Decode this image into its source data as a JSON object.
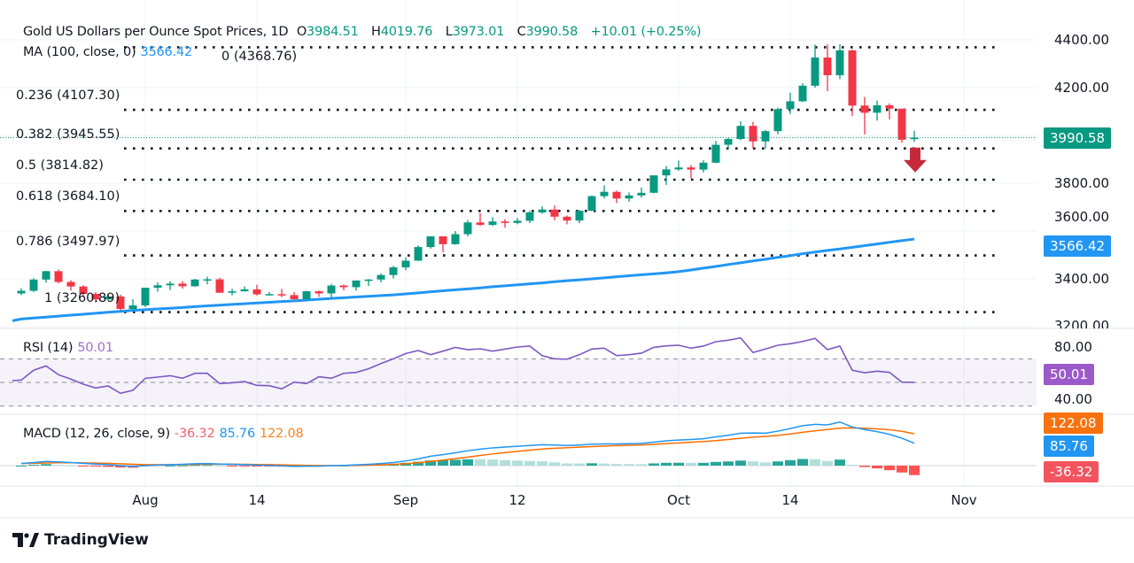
{
  "header": {
    "symbol_title": "Gold US Dollars per Ounce Spot Prices, 1D",
    "open_label": "O",
    "open": "3984.51",
    "high_label": "H",
    "high": "4019.76",
    "low_label": "L",
    "low": "3973.01",
    "close_label": "C",
    "close": "3990.58",
    "change": "+10.01 (+0.25%)"
  },
  "ma_legend": {
    "label": "MA (100, close, 0)",
    "value": "3566.42"
  },
  "rsi_legend": {
    "label": "RSI (14)",
    "value": "50.01"
  },
  "macd_legend": {
    "label": "MACD (12, 26, close, 9)",
    "hist": "-36.32",
    "macd": "85.76",
    "signal": "122.08"
  },
  "fib_levels": [
    {
      "label": "0 (4368.76)",
      "price": 4368.76
    },
    {
      "label": "0.236 (4107.30)",
      "price": 4107.3
    },
    {
      "label": "0.382 (3945.55)",
      "price": 3945.55
    },
    {
      "label": "0.5 (3814.82)",
      "price": 3814.82
    },
    {
      "label": "0.618 (3684.10)",
      "price": 3684.1
    },
    {
      "label": "0.786 (3497.97)",
      "price": 3497.97
    },
    {
      "label": "1 (3260.89)",
      "price": 3260.89
    }
  ],
  "price_axis": {
    "ticks": [
      "4400.00",
      "4200.00",
      "3800.00",
      "3600.00",
      "3400.00",
      "3200.00"
    ],
    "last_price_badge": "3990.58",
    "ma_badge": "3566.42"
  },
  "rsi_axis": {
    "ticks": [
      "80.00",
      "40.00"
    ],
    "badge": "50.01",
    "bands": [
      70,
      50,
      30
    ]
  },
  "macd_axis": {
    "signal_badge": "122.08",
    "macd_badge": "85.76",
    "hist_badge": "-36.32"
  },
  "time_axis": {
    "ticks": [
      {
        "label": "Aug",
        "date": "Aug 1"
      },
      {
        "label": "14",
        "date": "Aug 14"
      },
      {
        "label": "Sep",
        "date": "Sep 1"
      },
      {
        "label": "12",
        "date": "Sep 12"
      },
      {
        "label": "Oct",
        "date": "Oct 1"
      },
      {
        "label": "14",
        "date": "Oct 14"
      },
      {
        "label": "Nov",
        "date": "Nov 3"
      }
    ]
  },
  "colors": {
    "up": "#089981",
    "down": "#f23645",
    "ma": "#2196f3",
    "rsi": "#7e57c2",
    "macd": "#2196f3",
    "signal": "#ff6d00",
    "arrow": "#c62a3a",
    "hist_up_strong": "#26a69a",
    "hist_up_weak": "#b2dfdb",
    "hist_down_strong": "#ff5252",
    "hist_down_weak": "#ffcdd2"
  },
  "annotation": {
    "type": "down-arrow",
    "near_price": 3860
  },
  "brand": "TradingView",
  "chart_data": {
    "type": "candlestick",
    "timeframe": "1D",
    "ylim": [
      3200,
      4400
    ],
    "bars": [
      [
        "Jul 18",
        3339,
        3361,
        3332,
        3350
      ],
      [
        "Jul 21",
        3350,
        3402,
        3345,
        3397
      ],
      [
        "Jul 22",
        3397,
        3434,
        3384,
        3432
      ],
      [
        "Jul 23",
        3432,
        3439,
        3381,
        3387
      ],
      [
        "Jul 24",
        3387,
        3394,
        3351,
        3368
      ],
      [
        "Jul 25",
        3368,
        3373,
        3325,
        3337
      ],
      [
        "Jul 28",
        3337,
        3345,
        3301,
        3314
      ],
      [
        "Jul 29",
        3314,
        3334,
        3309,
        3326
      ],
      [
        "Jul 30",
        3326,
        3334,
        3268,
        3274
      ],
      [
        "Jul 31",
        3274,
        3315,
        3268,
        3289
      ],
      [
        "Aug 1",
        3289,
        3363,
        3281,
        3363
      ],
      [
        "Aug 4",
        3363,
        3385,
        3346,
        3373
      ],
      [
        "Aug 5",
        3373,
        3390,
        3353,
        3380
      ],
      [
        "Aug 6",
        3380,
        3391,
        3359,
        3369
      ],
      [
        "Aug 7",
        3369,
        3400,
        3367,
        3397
      ],
      [
        "Aug 8",
        3397,
        3409,
        3377,
        3398
      ],
      [
        "Aug 11",
        3398,
        3405,
        3341,
        3342
      ],
      [
        "Aug 12",
        3342,
        3358,
        3331,
        3348
      ],
      [
        "Aug 13",
        3348,
        3368,
        3346,
        3356
      ],
      [
        "Aug 14",
        3356,
        3375,
        3330,
        3335
      ],
      [
        "Aug 15",
        3335,
        3345,
        3330,
        3336
      ],
      [
        "Aug 18",
        3336,
        3358,
        3323,
        3332
      ],
      [
        "Aug 19",
        3332,
        3345,
        3311,
        3315
      ],
      [
        "Aug 20",
        3315,
        3350,
        3311,
        3348
      ],
      [
        "Aug 21",
        3348,
        3351,
        3325,
        3339
      ],
      [
        "Aug 22",
        3339,
        3379,
        3321,
        3372
      ],
      [
        "Aug 25",
        3372,
        3376,
        3352,
        3365
      ],
      [
        "Aug 26",
        3365,
        3394,
        3351,
        3393
      ],
      [
        "Aug 27",
        3393,
        3399,
        3370,
        3397
      ],
      [
        "Aug 28",
        3397,
        3423,
        3385,
        3416
      ],
      [
        "Aug 29",
        3416,
        3454,
        3402,
        3448
      ],
      [
        "Sep 1",
        3448,
        3490,
        3436,
        3476
      ],
      [
        "Sep 2",
        3476,
        3540,
        3475,
        3533
      ],
      [
        "Sep 3",
        3533,
        3578,
        3526,
        3578
      ],
      [
        "Sep 4",
        3578,
        3578,
        3511,
        3545
      ],
      [
        "Sep 5",
        3545,
        3600,
        3543,
        3587
      ],
      [
        "Sep 8",
        3587,
        3646,
        3578,
        3636
      ],
      [
        "Sep 9",
        3636,
        3674,
        3621,
        3626
      ],
      [
        "Sep 10",
        3626,
        3658,
        3621,
        3640
      ],
      [
        "Sep 11",
        3640,
        3650,
        3614,
        3634
      ],
      [
        "Sep 12",
        3634,
        3655,
        3628,
        3643
      ],
      [
        "Sep 15",
        3643,
        3685,
        3633,
        3678
      ],
      [
        "Sep 16",
        3678,
        3703,
        3672,
        3690
      ],
      [
        "Sep 17",
        3690,
        3707,
        3645,
        3660
      ],
      [
        "Sep 18",
        3660,
        3665,
        3628,
        3644
      ],
      [
        "Sep 19",
        3644,
        3688,
        3633,
        3685
      ],
      [
        "Sep 22",
        3685,
        3749,
        3683,
        3746
      ],
      [
        "Sep 23",
        3746,
        3791,
        3736,
        3764
      ],
      [
        "Sep 24",
        3764,
        3769,
        3717,
        3736
      ],
      [
        "Sep 25",
        3736,
        3761,
        3722,
        3749
      ],
      [
        "Sep 26",
        3749,
        3782,
        3740,
        3760
      ],
      [
        "Sep 29",
        3760,
        3834,
        3758,
        3833
      ],
      [
        "Sep 30",
        3833,
        3872,
        3793,
        3858
      ],
      [
        "Oct 1",
        3858,
        3895,
        3852,
        3866
      ],
      [
        "Oct 2",
        3866,
        3876,
        3820,
        3857
      ],
      [
        "Oct 3",
        3857,
        3896,
        3845,
        3886
      ],
      [
        "Oct 6",
        3886,
        3977,
        3884,
        3961
      ],
      [
        "Oct 7",
        3961,
        3990,
        3940,
        3985
      ],
      [
        "Oct 8",
        3985,
        4059,
        3980,
        4040
      ],
      [
        "Oct 9",
        4040,
        4057,
        3945,
        3975
      ],
      [
        "Oct 10",
        3975,
        4022,
        3945,
        4018
      ],
      [
        "Oct 13",
        4018,
        4116,
        4005,
        4110
      ],
      [
        "Oct 14",
        4110,
        4179,
        4090,
        4143
      ],
      [
        "Oct 15",
        4143,
        4218,
        4140,
        4208
      ],
      [
        "Oct 16",
        4208,
        4380,
        4200,
        4326
      ],
      [
        "Oct 17",
        4326,
        4381,
        4185,
        4252
      ],
      [
        "Oct 20",
        4252,
        4381,
        4235,
        4356
      ],
      [
        "Oct 21",
        4356,
        4359,
        4082,
        4125
      ],
      [
        "Oct 22",
        4125,
        4161,
        4004,
        4095
      ],
      [
        "Oct 23",
        4095,
        4146,
        4062,
        4126
      ],
      [
        "Oct 24",
        4126,
        4134,
        4067,
        4112
      ],
      [
        "Oct 27",
        4112,
        4112,
        3970,
        3982
      ],
      [
        "Oct 28",
        3984.51,
        4019.76,
        3973.01,
        3990.58
      ]
    ],
    "ma100": [
      3232,
      3236,
      3240,
      3244,
      3248,
      3252,
      3256,
      3260,
      3264,
      3268,
      3271,
      3274,
      3277,
      3280,
      3284,
      3287,
      3290,
      3293,
      3296,
      3299,
      3302,
      3305,
      3308,
      3311,
      3315,
      3318,
      3321,
      3324,
      3327,
      3330,
      3333,
      3337,
      3341,
      3346,
      3350,
      3354,
      3358,
      3362,
      3367,
      3371,
      3375,
      3379,
      3383,
      3388,
      3392,
      3396,
      3400,
      3404,
      3409,
      3413,
      3417,
      3421,
      3425,
      3430,
      3437,
      3445,
      3452,
      3460,
      3467,
      3475,
      3482,
      3490,
      3497,
      3505,
      3512,
      3519,
      3525,
      3532,
      3539,
      3546,
      3553,
      3560,
      3566.42
    ],
    "rsi": [
      52,
      60.3,
      64,
      56.5,
      52.8,
      48.5,
      45.3,
      47,
      40.8,
      43.3,
      53.5,
      54.5,
      55.7,
      53.5,
      57.7,
      57.7,
      49,
      49.7,
      50.7,
      47.5,
      47.2,
      44.5,
      50.2,
      49,
      54.8,
      53.5,
      57.7,
      58.5,
      61.5,
      66,
      70,
      74.5,
      77,
      73.5,
      76.5,
      79.7,
      77.7,
      78.5,
      76.5,
      78.3,
      80,
      80.8,
      72.7,
      70,
      69.7,
      73.5,
      78.3,
      79,
      72.7,
      73.5,
      74.8,
      79.7,
      81,
      81.5,
      79,
      80.8,
      84.5,
      85.8,
      87.7,
      75.3,
      78.3,
      81.5,
      82.8,
      84.7,
      87.3,
      77.8,
      80.8,
      60.3,
      58.2,
      59.5,
      58.5,
      50.2,
      50.01
    ],
    "macd": [
      8,
      12,
      16,
      14,
      12,
      9,
      6,
      4,
      0,
      -3,
      0,
      2,
      4,
      5,
      7,
      8,
      6,
      5,
      4,
      2,
      1,
      -1,
      -3,
      -2,
      -2,
      0,
      1,
      3,
      5,
      8,
      12,
      18,
      26,
      36,
      42,
      49,
      57,
      63,
      68,
      71,
      74,
      77,
      80,
      79,
      77,
      79,
      82,
      83,
      83,
      84,
      85,
      90,
      95,
      98,
      100,
      103,
      110,
      116,
      124,
      125,
      124,
      132,
      142,
      153,
      158,
      156,
      167,
      148,
      138,
      130,
      120,
      105,
      85.76
    ],
    "signal": [
      8,
      8.8,
      10.2,
      11,
      11.2,
      10.8,
      9.8,
      8.7,
      7,
      5,
      4,
      3.6,
      3.7,
      4,
      4.6,
      5.3,
      5.4,
      5.3,
      5,
      4.4,
      3.7,
      2.8,
      1.6,
      0.9,
      0.3,
      0.2,
      0.4,
      0.9,
      1.7,
      3,
      4.8,
      7.4,
      11.1,
      16.1,
      21.3,
      26.8,
      32.8,
      38.9,
      44.7,
      50,
      54.8,
      59.2,
      63.4,
      66.5,
      68.6,
      70.7,
      73,
      75,
      76.6,
      78,
      79.4,
      81.5,
      84.2,
      87,
      89.6,
      92.3,
      95.8,
      99.9,
      104.7,
      108.8,
      111.8,
      115.8,
      121,
      127.4,
      133.5,
      138,
      143.8,
      144.6,
      143.3,
      140.6,
      137.5,
      131.2,
      122.08
    ]
  }
}
